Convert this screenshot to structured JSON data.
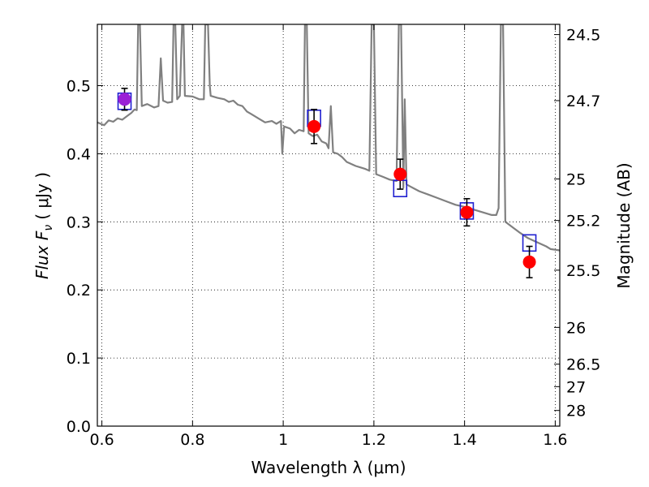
{
  "chart_data": {
    "type": "scatter",
    "xlabel": "Wavelength  λ (μm)",
    "ylabel_left": "Flux  F",
    "ylabel_left_sub": "ν",
    "ylabel_left_unit": "( μJy )",
    "ylabel_right": "Magnitude (AB)",
    "xlim": [
      0.59,
      1.61
    ],
    "ylim": [
      0.0,
      0.59
    ],
    "grid": true,
    "x_ticks": [
      {
        "value": 0.6,
        "label": "0.6"
      },
      {
        "value": 0.8,
        "label": "0.8"
      },
      {
        "value": 1.0,
        "label": "1"
      },
      {
        "value": 1.2,
        "label": "1.2"
      },
      {
        "value": 1.4,
        "label": "1.4"
      },
      {
        "value": 1.6,
        "label": "1.6"
      }
    ],
    "y_ticks": [
      {
        "value": 0.0,
        "label": "0.0"
      },
      {
        "value": 0.1,
        "label": "0.1"
      },
      {
        "value": 0.2,
        "label": "0.2"
      },
      {
        "value": 0.3,
        "label": "0.3"
      },
      {
        "value": 0.4,
        "label": "0.4"
      },
      {
        "value": 0.5,
        "label": "0.5"
      }
    ],
    "right_ticks": [
      {
        "flux": 0.575,
        "label": "24.5"
      },
      {
        "flux": 0.478,
        "label": "24.7"
      },
      {
        "flux": 0.363,
        "label": "25"
      },
      {
        "flux": 0.302,
        "label": "25.2"
      },
      {
        "flux": 0.229,
        "label": "25.5"
      },
      {
        "flux": 0.145,
        "label": "26"
      },
      {
        "flux": 0.091,
        "label": "26.5"
      },
      {
        "flux": 0.058,
        "label": "27"
      },
      {
        "flux": 0.023,
        "label": "28"
      }
    ],
    "series": [
      {
        "kind": "line",
        "color": "#808080",
        "points": [
          [
            0.59,
            0.446
          ],
          [
            0.605,
            0.442
          ],
          [
            0.615,
            0.449
          ],
          [
            0.625,
            0.447
          ],
          [
            0.635,
            0.452
          ],
          [
            0.645,
            0.45
          ],
          [
            0.655,
            0.455
          ],
          [
            0.665,
            0.46
          ],
          [
            0.672,
            0.465
          ],
          [
            0.677,
            0.464
          ],
          [
            0.68,
            0.59
          ],
          [
            0.684,
            0.59
          ],
          [
            0.688,
            0.47
          ],
          [
            0.7,
            0.473
          ],
          [
            0.715,
            0.468
          ],
          [
            0.725,
            0.47
          ],
          [
            0.73,
            0.54
          ],
          [
            0.735,
            0.478
          ],
          [
            0.745,
            0.475
          ],
          [
            0.755,
            0.476
          ],
          [
            0.758,
            0.59
          ],
          [
            0.762,
            0.59
          ],
          [
            0.766,
            0.48
          ],
          [
            0.772,
            0.485
          ],
          [
            0.777,
            0.59
          ],
          [
            0.78,
            0.59
          ],
          [
            0.783,
            0.485
          ],
          [
            0.8,
            0.484
          ],
          [
            0.815,
            0.48
          ],
          [
            0.825,
            0.48
          ],
          [
            0.828,
            0.59
          ],
          [
            0.834,
            0.59
          ],
          [
            0.838,
            0.5
          ],
          [
            0.84,
            0.485
          ],
          [
            0.855,
            0.482
          ],
          [
            0.87,
            0.48
          ],
          [
            0.88,
            0.476
          ],
          [
            0.89,
            0.478
          ],
          [
            0.9,
            0.472
          ],
          [
            0.91,
            0.47
          ],
          [
            0.92,
            0.462
          ],
          [
            0.93,
            0.458
          ],
          [
            0.945,
            0.452
          ],
          [
            0.96,
            0.446
          ],
          [
            0.975,
            0.448
          ],
          [
            0.985,
            0.444
          ],
          [
            0.995,
            0.448
          ],
          [
            0.998,
            0.4
          ],
          [
            1.002,
            0.44
          ],
          [
            1.015,
            0.437
          ],
          [
            1.025,
            0.43
          ],
          [
            1.035,
            0.435
          ],
          [
            1.045,
            0.433
          ],
          [
            1.048,
            0.59
          ],
          [
            1.052,
            0.59
          ],
          [
            1.056,
            0.43
          ],
          [
            1.065,
            0.426
          ],
          [
            1.075,
            0.428
          ],
          [
            1.085,
            0.418
          ],
          [
            1.095,
            0.415
          ],
          [
            1.1,
            0.408
          ],
          [
            1.105,
            0.47
          ],
          [
            1.11,
            0.402
          ],
          [
            1.12,
            0.4
          ],
          [
            1.13,
            0.395
          ],
          [
            1.14,
            0.388
          ],
          [
            1.15,
            0.385
          ],
          [
            1.16,
            0.382
          ],
          [
            1.17,
            0.38
          ],
          [
            1.18,
            0.378
          ],
          [
            1.19,
            0.375
          ],
          [
            1.195,
            0.59
          ],
          [
            1.2,
            0.59
          ],
          [
            1.205,
            0.37
          ],
          [
            1.22,
            0.366
          ],
          [
            1.235,
            0.362
          ],
          [
            1.25,
            0.36
          ],
          [
            1.255,
            0.59
          ],
          [
            1.26,
            0.59
          ],
          [
            1.265,
            0.35
          ],
          [
            1.268,
            0.48
          ],
          [
            1.272,
            0.355
          ],
          [
            1.28,
            0.352
          ],
          [
            1.3,
            0.345
          ],
          [
            1.32,
            0.34
          ],
          [
            1.34,
            0.335
          ],
          [
            1.36,
            0.33
          ],
          [
            1.38,
            0.325
          ],
          [
            1.4,
            0.322
          ],
          [
            1.42,
            0.318
          ],
          [
            1.44,
            0.314
          ],
          [
            1.46,
            0.31
          ],
          [
            1.47,
            0.31
          ],
          [
            1.475,
            0.32
          ],
          [
            1.48,
            0.59
          ],
          [
            1.485,
            0.59
          ],
          [
            1.49,
            0.3
          ],
          [
            1.5,
            0.295
          ],
          [
            1.52,
            0.285
          ],
          [
            1.54,
            0.276
          ],
          [
            1.56,
            0.27
          ],
          [
            1.58,
            0.264
          ],
          [
            1.59,
            0.26
          ],
          [
            1.61,
            0.258
          ]
        ]
      },
      {
        "kind": "model_boxes",
        "color": "#1f1fd0",
        "points": [
          [
            0.65,
            0.477
          ],
          [
            1.068,
            0.452
          ],
          [
            1.258,
            0.349
          ],
          [
            1.405,
            0.316
          ],
          [
            1.543,
            0.269
          ]
        ]
      },
      {
        "kind": "observed",
        "color": "#ff0000",
        "first_point_color": "#9a1fd6",
        "points": [
          {
            "x": 0.65,
            "y": 0.48,
            "err": 0.016
          },
          {
            "x": 1.068,
            "y": 0.44,
            "err": 0.025
          },
          {
            "x": 1.258,
            "y": 0.37,
            "err": 0.022
          },
          {
            "x": 1.405,
            "y": 0.314,
            "err": 0.02
          },
          {
            "x": 1.543,
            "y": 0.241,
            "err": 0.023
          }
        ]
      }
    ]
  }
}
